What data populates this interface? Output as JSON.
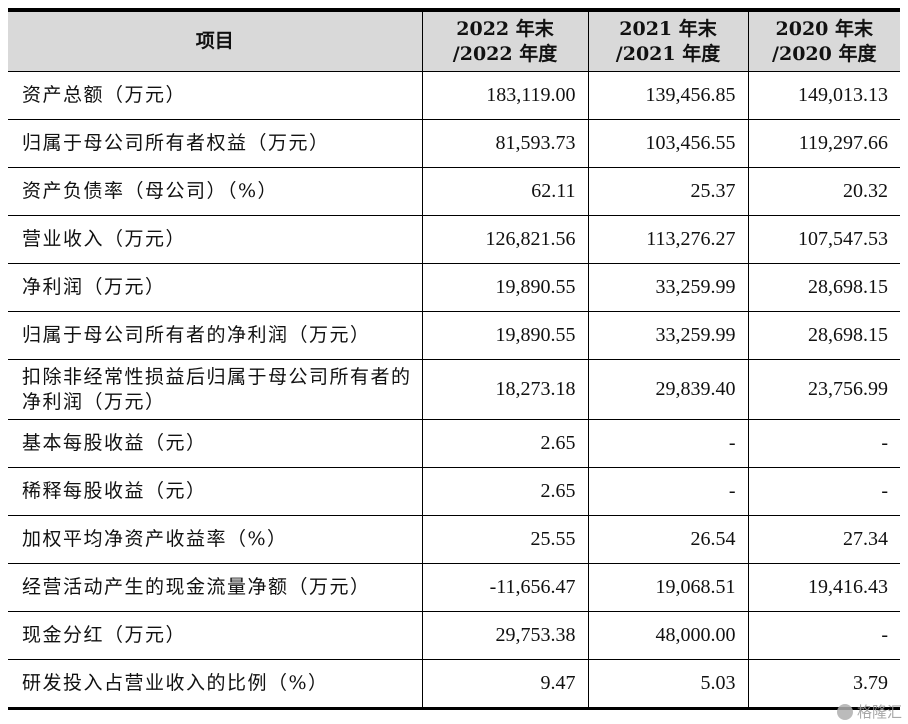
{
  "table": {
    "header": {
      "item": "项目",
      "cols": [
        {
          "line1": "2022 年末",
          "line2": "/2022 年度"
        },
        {
          "line1": "2021 年末",
          "line2": "/2021 年度"
        },
        {
          "line1": "2020 年末",
          "line2": "/2020 年度"
        }
      ]
    },
    "rows": [
      {
        "label": "资产总额（万元）",
        "v2022": "183,119.00",
        "v2021": "139,456.85",
        "v2020": "149,013.13"
      },
      {
        "label": "归属于母公司所有者权益（万元）",
        "v2022": "81,593.73",
        "v2021": "103,456.55",
        "v2020": "119,297.66"
      },
      {
        "label": "资产负债率（母公司）（%）",
        "v2022": "62.11",
        "v2021": "25.37",
        "v2020": "20.32"
      },
      {
        "label": "营业收入（万元）",
        "v2022": "126,821.56",
        "v2021": "113,276.27",
        "v2020": "107,547.53"
      },
      {
        "label": "净利润（万元）",
        "v2022": "19,890.55",
        "v2021": "33,259.99",
        "v2020": "28,698.15"
      },
      {
        "label": "归属于母公司所有者的净利润（万元）",
        "v2022": "19,890.55",
        "v2021": "33,259.99",
        "v2020": "28,698.15"
      },
      {
        "label": "扣除非经常性损益后归属于母公司所有者的净利润（万元）",
        "v2022": "18,273.18",
        "v2021": "29,839.40",
        "v2020": "23,756.99"
      },
      {
        "label": "基本每股收益（元）",
        "v2022": "2.65",
        "v2021": "-",
        "v2020": "-"
      },
      {
        "label": "稀释每股收益（元）",
        "v2022": "2.65",
        "v2021": "-",
        "v2020": "-"
      },
      {
        "label": "加权平均净资产收益率（%）",
        "v2022": "25.55",
        "v2021": "26.54",
        "v2020": "27.34"
      },
      {
        "label": "经营活动产生的现金流量净额（万元）",
        "v2022": "-11,656.47",
        "v2021": "19,068.51",
        "v2020": "19,416.43"
      },
      {
        "label": "现金分红（万元）",
        "v2022": "29,753.38",
        "v2021": "48,000.00",
        "v2020": "-"
      },
      {
        "label": "研发投入占营业收入的比例（%）",
        "v2022": "9.47",
        "v2021": "5.03",
        "v2020": "3.79"
      }
    ]
  },
  "watermark": {
    "text": "格隆汇",
    "icon": "gelonghui-logo-icon"
  }
}
